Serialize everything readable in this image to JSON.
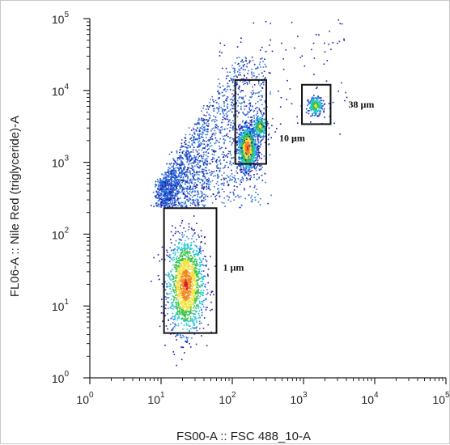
{
  "chart_data": {
    "type": "scatter",
    "subtype": "flow-cytometry-density-dot-plot",
    "xlabel": "FS00-A :: FSC 488_10-A",
    "ylabel": "FL06-A :: Nile Red (triglyceride)-A",
    "x_scale": "log",
    "y_scale": "log",
    "xlim": [
      1,
      100000
    ],
    "ylim": [
      1,
      100000
    ],
    "x_ticks": [
      {
        "base": "10",
        "exp": "0"
      },
      {
        "base": "10",
        "exp": "1"
      },
      {
        "base": "10",
        "exp": "2"
      },
      {
        "base": "10",
        "exp": "3"
      },
      {
        "base": "10",
        "exp": "4"
      },
      {
        "base": "10",
        "exp": "5"
      }
    ],
    "y_ticks": [
      {
        "base": "10",
        "exp": "0"
      },
      {
        "base": "10",
        "exp": "1"
      },
      {
        "base": "10",
        "exp": "2"
      },
      {
        "base": "10",
        "exp": "3"
      },
      {
        "base": "10",
        "exp": "4"
      },
      {
        "base": "10",
        "exp": "5"
      }
    ],
    "grid": false,
    "colormap": [
      "#1a1aa8",
      "#2a6fdb",
      "#22c7d6",
      "#37c24a",
      "#f2e23a",
      "#f08a20",
      "#d81e1e"
    ],
    "populations": [
      {
        "label": "1 µm",
        "x_median": 22,
        "y_median": 20,
        "x_spread_decades": 0.13,
        "y_spread_decades": 0.33,
        "density": "high"
      },
      {
        "label": "10 µm",
        "x_median": 160,
        "y_median": 1600,
        "x_spread_decades": 0.06,
        "y_spread_decades": 0.14,
        "density": "high"
      },
      {
        "label": "10 µm (secondary)",
        "x_median": 240,
        "y_median": 3200,
        "x_spread_decades": 0.05,
        "y_spread_decades": 0.08,
        "density": "medium"
      },
      {
        "label": "38 µm",
        "x_median": 1450,
        "y_median": 6200,
        "x_spread_decades": 0.05,
        "y_spread_decades": 0.06,
        "density": "medium"
      },
      {
        "label": "debris",
        "x_range": [
          10,
          300
        ],
        "y_range": [
          60,
          30000
        ],
        "density": "low"
      }
    ],
    "gates": [
      {
        "label": "1 µm",
        "x_range": [
          11,
          60
        ],
        "y_range": [
          4.2,
          230
        ]
      },
      {
        "label": "10 µm",
        "x_range": [
          110,
          300
        ],
        "y_range": [
          950,
          14000
        ]
      },
      {
        "label": "38 µm",
        "x_range": [
          950,
          2400
        ],
        "y_range": [
          3400,
          12000
        ]
      }
    ]
  }
}
